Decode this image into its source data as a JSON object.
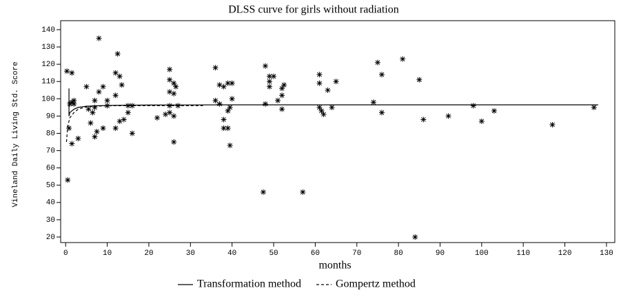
{
  "chart_data": {
    "type": "scatter",
    "title": "DLSS curve for girls without radiation",
    "x_label": "months",
    "y_label": "Vineland Daily Living Std. Score",
    "xlim": [
      -1.2,
      132
    ],
    "ylim": [
      16.8,
      145.2
    ],
    "xticks": [
      0,
      10,
      20,
      30,
      40,
      50,
      60,
      70,
      80,
      90,
      100,
      110,
      120,
      130
    ],
    "yticks": [
      20,
      30,
      40,
      50,
      60,
      70,
      80,
      90,
      100,
      110,
      120,
      130,
      140
    ],
    "marker_color": "#000000",
    "points": {
      "x": [
        0.3,
        1.5,
        0.5,
        0.8,
        1,
        1.5,
        2,
        1.5,
        2,
        3,
        5,
        5.5,
        6,
        6.5,
        7,
        7,
        7,
        7.5,
        8,
        8,
        9,
        9,
        10,
        10,
        12,
        12.5,
        12,
        13,
        12,
        13,
        13.5,
        14,
        15,
        15,
        16,
        16,
        22,
        24,
        25,
        25,
        25,
        25,
        25,
        26,
        26,
        26,
        26,
        26.5,
        27,
        36,
        36,
        37,
        37,
        38,
        38,
        38,
        39,
        39,
        39,
        39.5,
        40,
        40,
        39.5,
        47.5,
        48,
        48,
        49,
        49,
        50,
        49,
        51,
        52,
        52,
        52,
        52.5,
        57,
        61,
        61,
        61,
        61.5,
        62,
        63,
        64,
        65,
        74,
        75,
        76,
        76,
        81,
        84,
        85,
        86,
        92,
        98,
        100,
        103,
        117,
        127
      ],
      "y": [
        116,
        115,
        53,
        83,
        97,
        98,
        99,
        74,
        97,
        77,
        107,
        94,
        86,
        92,
        95,
        99,
        78,
        81,
        135,
        104,
        107,
        83,
        96,
        99,
        115,
        126,
        102,
        113,
        83,
        87,
        108,
        88,
        92,
        96,
        80,
        96,
        89,
        91,
        117,
        104,
        111,
        96,
        92,
        109,
        103,
        90,
        75,
        107,
        96,
        118,
        99,
        108,
        97,
        83,
        88,
        107,
        83,
        93,
        109,
        95,
        100,
        109,
        73,
        46,
        119,
        97,
        113,
        110,
        113,
        107,
        99,
        94,
        102,
        106,
        108,
        46,
        114,
        109,
        95,
        93,
        91,
        105,
        95,
        110,
        98,
        121,
        114,
        92,
        123,
        20,
        111,
        88,
        90,
        96,
        87,
        93,
        85,
        95
      ]
    },
    "series": [
      {
        "name": "Transformation method",
        "color": "#000000",
        "style": "solid",
        "x": [
          0.8,
          0.8,
          1,
          2,
          3,
          5,
          8,
          12,
          20,
          40,
          80,
          128
        ],
        "y": [
          106,
          90,
          92,
          94,
          95,
          95.7,
          96,
          96.2,
          96.4,
          96.5,
          96.5,
          96.5
        ]
      },
      {
        "name": "Gompertz method",
        "color": "#000000",
        "style": "dashed",
        "x": [
          0.2,
          0.5,
          1,
          2,
          3,
          5,
          8,
          12,
          20,
          33
        ],
        "y": [
          75,
          84,
          89,
          92,
          94,
          95.3,
          95.8,
          96,
          96,
          96
        ]
      }
    ]
  }
}
